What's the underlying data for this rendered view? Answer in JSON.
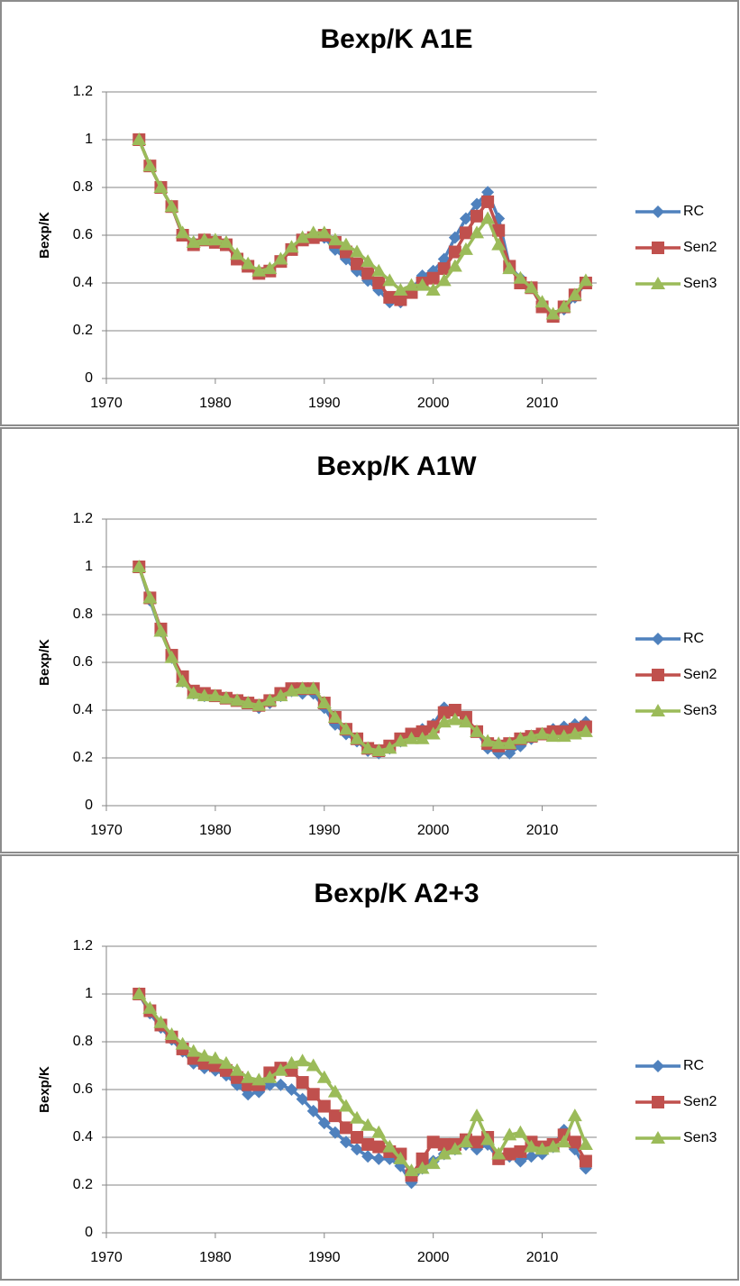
{
  "chart_data": [
    {
      "type": "line",
      "title": "Bexp/K A1E",
      "y_label": "Bexp/K",
      "x": [
        1973,
        1974,
        1975,
        1976,
        1977,
        1978,
        1979,
        1980,
        1981,
        1982,
        1983,
        1984,
        1985,
        1986,
        1987,
        1988,
        1989,
        1990,
        1991,
        1992,
        1993,
        1994,
        1995,
        1996,
        1997,
        1998,
        1999,
        2000,
        2001,
        2002,
        2003,
        2004,
        2005,
        2006,
        2007,
        2008,
        2009,
        2010,
        2011,
        2012,
        2013,
        2014
      ],
      "xlim": [
        1970,
        2015
      ],
      "xticks": [
        1970,
        1980,
        1990,
        2000,
        2010
      ],
      "ylim": [
        0,
        1.2
      ],
      "yticks": [
        0,
        0.2,
        0.4,
        0.6,
        0.8,
        1,
        1.2
      ],
      "grid": true,
      "legend": "right",
      "series": [
        {
          "name": "RC",
          "color": "#4F81BD",
          "marker": "diamond",
          "values": [
            1.0,
            0.89,
            0.8,
            0.72,
            0.6,
            0.57,
            0.58,
            0.57,
            0.56,
            0.5,
            0.47,
            0.44,
            0.45,
            0.49,
            0.54,
            0.58,
            0.59,
            0.59,
            0.54,
            0.5,
            0.45,
            0.41,
            0.37,
            0.32,
            0.32,
            0.37,
            0.43,
            0.45,
            0.5,
            0.59,
            0.67,
            0.73,
            0.78,
            0.67,
            0.47,
            0.42,
            0.38,
            0.3,
            0.26,
            0.29,
            0.34,
            0.4
          ]
        },
        {
          "name": "Sen2",
          "color": "#C0504D",
          "marker": "square",
          "values": [
            1.0,
            0.89,
            0.8,
            0.72,
            0.6,
            0.56,
            0.58,
            0.57,
            0.56,
            0.5,
            0.47,
            0.44,
            0.45,
            0.49,
            0.54,
            0.58,
            0.59,
            0.6,
            0.57,
            0.53,
            0.48,
            0.44,
            0.4,
            0.34,
            0.33,
            0.36,
            0.4,
            0.42,
            0.46,
            0.53,
            0.61,
            0.68,
            0.74,
            0.62,
            0.47,
            0.4,
            0.38,
            0.3,
            0.26,
            0.3,
            0.35,
            0.4
          ]
        },
        {
          "name": "Sen3",
          "color": "#9BBB59",
          "marker": "triangle",
          "values": [
            1.0,
            0.89,
            0.8,
            0.72,
            0.61,
            0.57,
            0.58,
            0.58,
            0.57,
            0.52,
            0.48,
            0.45,
            0.46,
            0.5,
            0.55,
            0.59,
            0.61,
            0.61,
            0.58,
            0.56,
            0.53,
            0.49,
            0.45,
            0.41,
            0.37,
            0.39,
            0.39,
            0.37,
            0.41,
            0.47,
            0.54,
            0.61,
            0.67,
            0.56,
            0.46,
            0.42,
            0.38,
            0.32,
            0.27,
            0.3,
            0.35,
            0.41
          ]
        }
      ]
    },
    {
      "type": "line",
      "title": "Bexp/K A1W",
      "y_label": "Bexp/K",
      "x": [
        1973,
        1974,
        1975,
        1976,
        1977,
        1978,
        1979,
        1980,
        1981,
        1982,
        1983,
        1984,
        1985,
        1986,
        1987,
        1988,
        1989,
        1990,
        1991,
        1992,
        1993,
        1994,
        1995,
        1996,
        1997,
        1998,
        1999,
        2000,
        2001,
        2002,
        2003,
        2004,
        2005,
        2006,
        2007,
        2008,
        2009,
        2010,
        2011,
        2012,
        2013,
        2014
      ],
      "xlim": [
        1970,
        2015
      ],
      "xticks": [
        1970,
        1980,
        1990,
        2000,
        2010
      ],
      "ylim": [
        0,
        1.2
      ],
      "yticks": [
        0,
        0.2,
        0.4,
        0.6,
        0.8,
        1,
        1.2
      ],
      "grid": true,
      "legend": "right",
      "series": [
        {
          "name": "RC",
          "color": "#4F81BD",
          "marker": "diamond",
          "values": [
            1.0,
            0.86,
            0.73,
            0.62,
            0.52,
            0.47,
            0.46,
            0.46,
            0.45,
            0.44,
            0.43,
            0.41,
            0.43,
            0.46,
            0.48,
            0.47,
            0.47,
            0.41,
            0.34,
            0.3,
            0.27,
            0.23,
            0.22,
            0.24,
            0.27,
            0.3,
            0.32,
            0.34,
            0.41,
            0.4,
            0.36,
            0.31,
            0.24,
            0.22,
            0.22,
            0.25,
            0.28,
            0.3,
            0.32,
            0.33,
            0.34,
            0.35
          ]
        },
        {
          "name": "Sen2",
          "color": "#C0504D",
          "marker": "square",
          "values": [
            1.0,
            0.87,
            0.74,
            0.63,
            0.54,
            0.48,
            0.47,
            0.46,
            0.45,
            0.44,
            0.43,
            0.42,
            0.44,
            0.47,
            0.49,
            0.49,
            0.49,
            0.43,
            0.37,
            0.32,
            0.28,
            0.24,
            0.23,
            0.25,
            0.28,
            0.3,
            0.31,
            0.33,
            0.39,
            0.4,
            0.37,
            0.31,
            0.26,
            0.25,
            0.26,
            0.28,
            0.29,
            0.3,
            0.31,
            0.31,
            0.32,
            0.33
          ]
        },
        {
          "name": "Sen3",
          "color": "#9BBB59",
          "marker": "triangle",
          "values": [
            1.0,
            0.87,
            0.73,
            0.62,
            0.52,
            0.47,
            0.46,
            0.46,
            0.45,
            0.44,
            0.43,
            0.42,
            0.44,
            0.46,
            0.48,
            0.49,
            0.49,
            0.43,
            0.37,
            0.32,
            0.28,
            0.24,
            0.23,
            0.24,
            0.27,
            0.28,
            0.28,
            0.3,
            0.35,
            0.36,
            0.35,
            0.31,
            0.27,
            0.26,
            0.26,
            0.28,
            0.29,
            0.3,
            0.29,
            0.29,
            0.3,
            0.31
          ]
        }
      ]
    },
    {
      "type": "line",
      "title": "Bexp/K A2+3",
      "y_label": "Bexp/K",
      "x": [
        1973,
        1974,
        1975,
        1976,
        1977,
        1978,
        1979,
        1980,
        1981,
        1982,
        1983,
        1984,
        1985,
        1986,
        1987,
        1988,
        1989,
        1990,
        1991,
        1992,
        1993,
        1994,
        1995,
        1996,
        1997,
        1998,
        1999,
        2000,
        2001,
        2002,
        2003,
        2004,
        2005,
        2006,
        2007,
        2008,
        2009,
        2010,
        2011,
        2012,
        2013,
        2014
      ],
      "xlim": [
        1970,
        2015
      ],
      "xticks": [
        1970,
        1980,
        1990,
        2000,
        2010
      ],
      "ylim": [
        0,
        1.2
      ],
      "yticks": [
        0,
        0.2,
        0.4,
        0.6,
        0.8,
        1,
        1.2
      ],
      "grid": true,
      "legend": "right",
      "series": [
        {
          "name": "RC",
          "color": "#4F81BD",
          "marker": "diamond",
          "values": [
            1.0,
            0.92,
            0.86,
            0.81,
            0.76,
            0.71,
            0.69,
            0.68,
            0.66,
            0.62,
            0.58,
            0.59,
            0.62,
            0.62,
            0.6,
            0.56,
            0.51,
            0.46,
            0.42,
            0.38,
            0.35,
            0.32,
            0.31,
            0.31,
            0.28,
            0.21,
            0.27,
            0.3,
            0.33,
            0.35,
            0.37,
            0.35,
            0.37,
            0.31,
            0.32,
            0.3,
            0.32,
            0.33,
            0.36,
            0.43,
            0.35,
            0.27
          ]
        },
        {
          "name": "Sen2",
          "color": "#C0504D",
          "marker": "square",
          "values": [
            1.0,
            0.93,
            0.87,
            0.82,
            0.77,
            0.73,
            0.71,
            0.7,
            0.68,
            0.65,
            0.62,
            0.62,
            0.67,
            0.69,
            0.68,
            0.63,
            0.58,
            0.53,
            0.49,
            0.44,
            0.4,
            0.37,
            0.36,
            0.34,
            0.33,
            0.24,
            0.31,
            0.38,
            0.37,
            0.37,
            0.39,
            0.38,
            0.4,
            0.31,
            0.33,
            0.34,
            0.38,
            0.36,
            0.37,
            0.41,
            0.38,
            0.3
          ]
        },
        {
          "name": "Sen3",
          "color": "#9BBB59",
          "marker": "triangle",
          "values": [
            1.0,
            0.94,
            0.88,
            0.83,
            0.79,
            0.76,
            0.74,
            0.73,
            0.71,
            0.68,
            0.65,
            0.64,
            0.65,
            0.68,
            0.71,
            0.72,
            0.7,
            0.65,
            0.59,
            0.53,
            0.48,
            0.45,
            0.42,
            0.36,
            0.31,
            0.26,
            0.27,
            0.29,
            0.33,
            0.35,
            0.38,
            0.49,
            0.39,
            0.33,
            0.41,
            0.42,
            0.36,
            0.35,
            0.36,
            0.38,
            0.49,
            0.37
          ]
        }
      ]
    }
  ]
}
